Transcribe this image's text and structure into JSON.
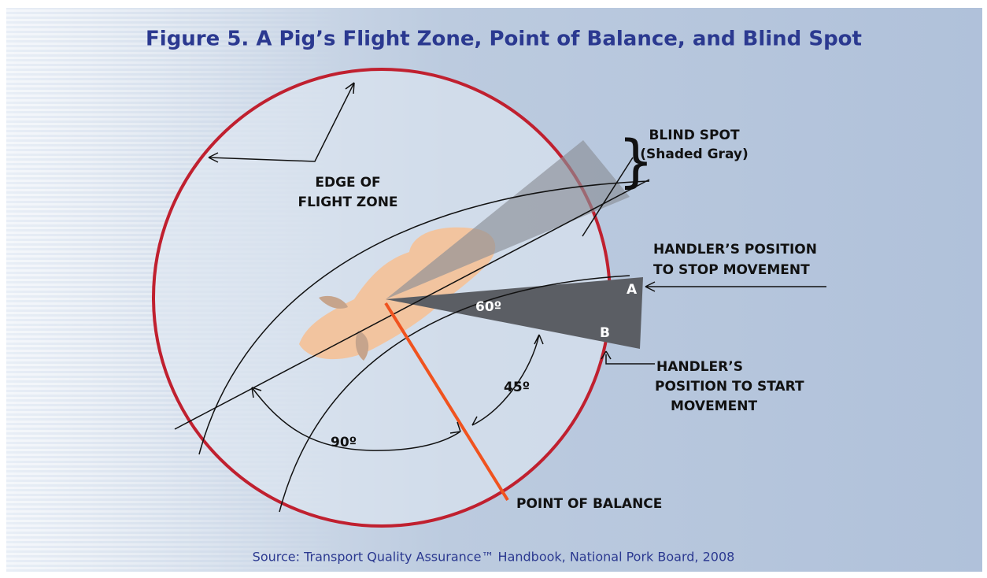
{
  "title": "Figure 5. A Pig’s Flight Zone, Point of Balance, and Blind Spot",
  "labels": {
    "edge_of_flight_zone": [
      "EDGE OF",
      "FLIGHT ZONE"
    ],
    "blind_spot": [
      "BLIND SPOT",
      "(Shaded Gray)"
    ],
    "handler_stop": [
      "HANDLER’S POSITION",
      "TO STOP MOVEMENT"
    ],
    "point_a": "A",
    "point_b": "B",
    "angle_60": "60º",
    "angle_45": "45º",
    "angle_90": "90º",
    "handler_start": [
      "HANDLER’S",
      "POSITION TO START",
      "MOVEMENT"
    ],
    "point_of_balance": "POINT OF BALANCE"
  },
  "source": "Source: Transport Quality Assurance™ Handbook, National Pork Board, 2008"
}
